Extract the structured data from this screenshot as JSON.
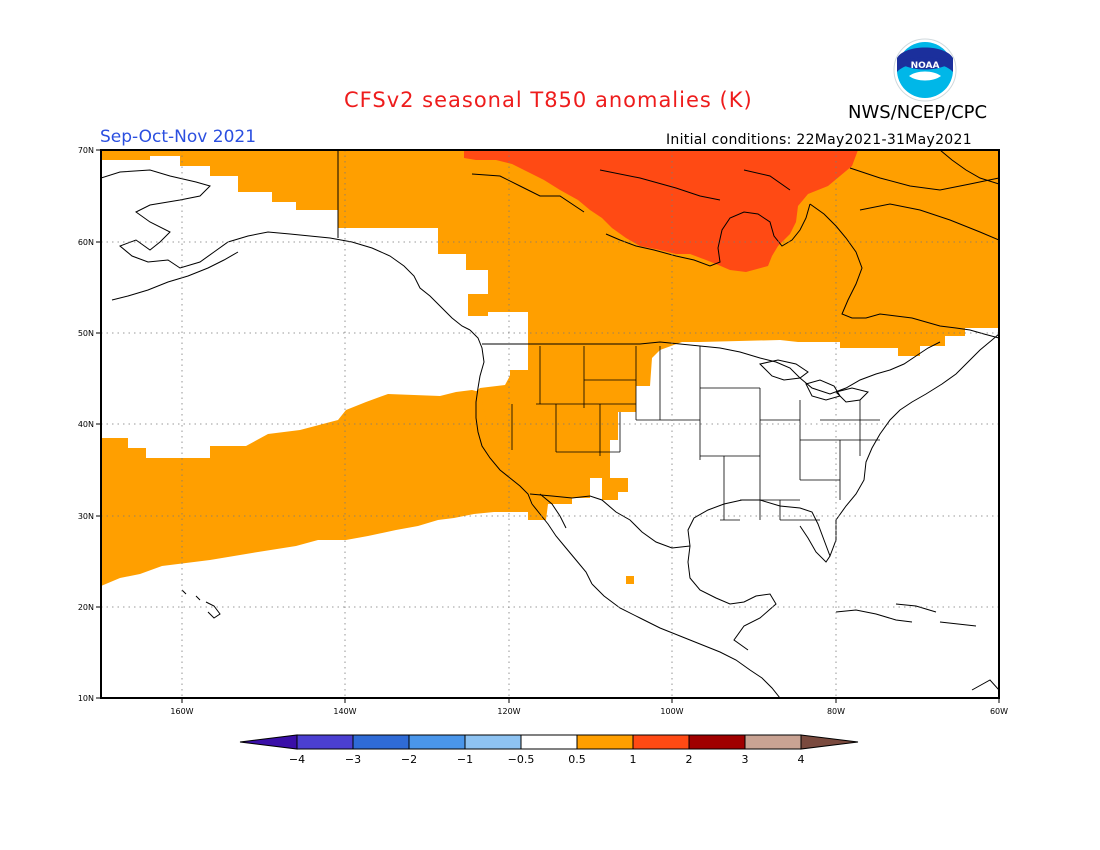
{
  "title": "CFSv2 seasonal T850 anomalies (K)",
  "agency": "NWS/NCEP/CPC",
  "season": "Sep-Oct-Nov 2021",
  "initial_conditions": "Initial conditions: 22May2021-31May2021",
  "logo_text": "NOAA",
  "map": {
    "region": "North America and eastern North Pacific",
    "lat_range": [
      10,
      70
    ],
    "lon_range": [
      -171,
      -60
    ],
    "lat_labels": [
      "70N",
      "60N",
      "50N",
      "40N",
      "30N",
      "20N",
      "10N"
    ],
    "lon_labels": [
      "160W",
      "140W",
      "120W",
      "100W",
      "80W",
      "60W"
    ],
    "gridlines": "dotted"
  },
  "colorbar": {
    "labels": [
      "−4",
      "−3",
      "−2",
      "−1",
      "−0.5",
      "0.5",
      "1",
      "2",
      "3",
      "4"
    ],
    "colors": [
      "#3a0fa8",
      "#4b3fd1",
      "#2f6bd6",
      "#4a96ea",
      "#8ec3f2",
      "#ffffff",
      "#ff9f00",
      "#ff4a14",
      "#a00000",
      "#c9a393",
      "#7a4a3e"
    ]
  },
  "anomaly_regions": [
    {
      "bin": "0.5 to 1",
      "color": "#ff9f00",
      "area": "Northern Canada, Alaska, western United States and subtropical eastern Pacific band"
    },
    {
      "bin": "1 to 2",
      "color": "#ff4a14",
      "area": "Northern Canada near Hudson Bay"
    }
  ]
}
